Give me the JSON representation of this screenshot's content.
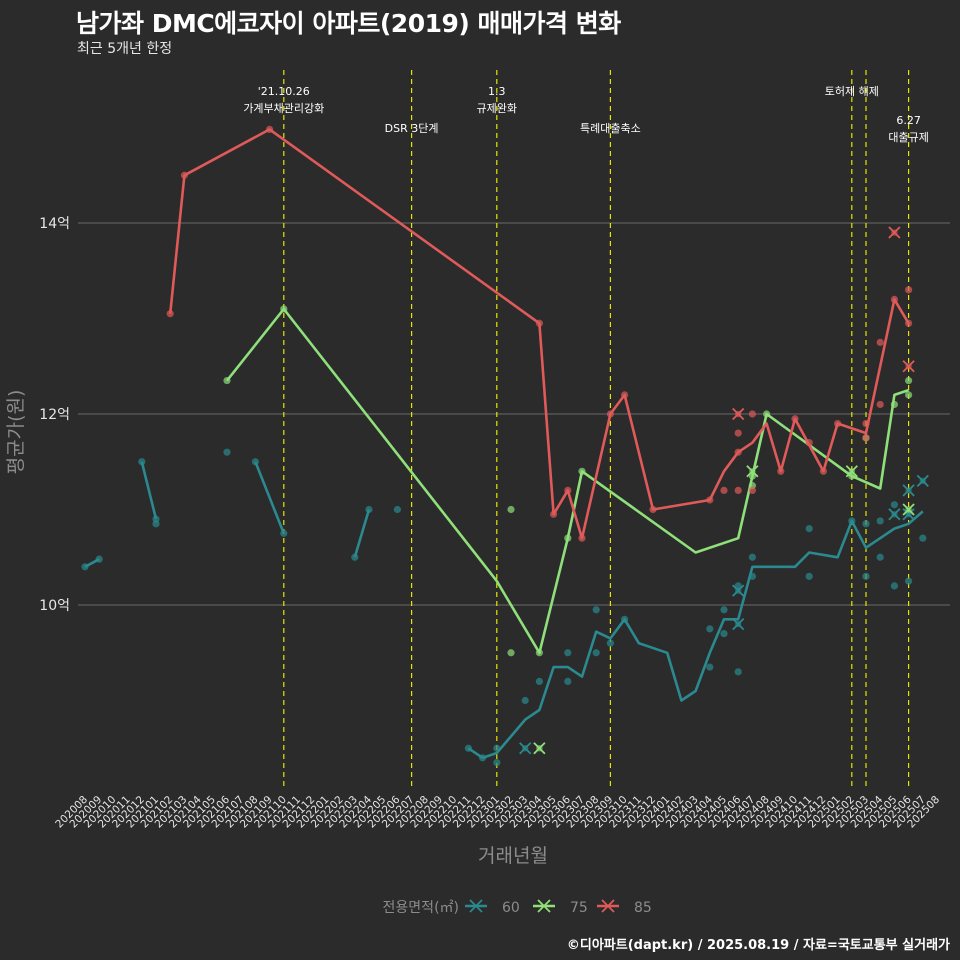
{
  "title": "남가좌 DMC에코자이 아파트(2019) 매매가격 변화",
  "subtitle": "최근 5개년 한정",
  "caption": "©디아파트(dapt.kr) / 2025.08.19 / 자료=국토교통부 실거래가",
  "chart_data": {
    "type": "line",
    "xlabel": "거래년월",
    "ylabel": "평균가(원)",
    "y_unit": "억",
    "ylim": [
      8.0,
      15.8
    ],
    "yticks": [
      10,
      12,
      14
    ],
    "ytick_labels": [
      "10억",
      "12억",
      "14억"
    ],
    "x_categories": [
      "202008",
      "202009",
      "202010",
      "202011",
      "202012",
      "202101",
      "202102",
      "202103",
      "202104",
      "202105",
      "202106",
      "202107",
      "202108",
      "202109",
      "202110",
      "202111",
      "202112",
      "202201",
      "202202",
      "202203",
      "202204",
      "202205",
      "202206",
      "202207",
      "202208",
      "202209",
      "202210",
      "202211",
      "202212",
      "202301",
      "202302",
      "202303",
      "202304",
      "202305",
      "202306",
      "202307",
      "202308",
      "202309",
      "202310",
      "202311",
      "202312",
      "202401",
      "202402",
      "202403",
      "202404",
      "202405",
      "202406",
      "202407",
      "202408",
      "202409",
      "202410",
      "202411",
      "202412",
      "202501",
      "202502",
      "202503",
      "202504",
      "202505",
      "202506",
      "202507",
      "202508"
    ],
    "grid": true,
    "legend": {
      "title": "전용면적(㎡)",
      "position": "bottom"
    },
    "annotations": [
      {
        "x": "202110",
        "lines": [
          "'21.10.26",
          "가계부채관리강화"
        ],
        "row": 1
      },
      {
        "x": "202207",
        "lines": [
          "DSR 3단계"
        ],
        "row": 2
      },
      {
        "x": "202301",
        "lines": [
          "1.3",
          "규제완화"
        ],
        "row": 1
      },
      {
        "x": "202309",
        "lines": [
          "특례대출축소"
        ],
        "row": 2
      },
      {
        "x": "202502",
        "lines": [
          "토허제 해제"
        ],
        "row": 1
      },
      {
        "x": "202503",
        "lines": [],
        "row": 0
      },
      {
        "x": "202506",
        "lines": [
          "6.27",
          "대출규제"
        ],
        "row": 3
      }
    ],
    "series": [
      {
        "name": "60",
        "color": "#2a8a8f",
        "segments": [
          [
            [
              "202008",
              10.4
            ],
            [
              "202009",
              10.48
            ]
          ],
          [
            [
              "202012",
              11.5
            ],
            [
              "202101",
              10.9
            ]
          ],
          [
            [
              "202108",
              11.5
            ],
            [
              "202110",
              10.75
            ]
          ],
          [
            [
              "202203",
              10.5
            ],
            [
              "202204",
              11.0
            ]
          ],
          [
            [
              "202211",
              8.5
            ],
            [
              "202212",
              8.4
            ],
            [
              "202301",
              8.45
            ],
            [
              "202303",
              8.8
            ],
            [
              "202304",
              8.9
            ],
            [
              "202305",
              9.35
            ],
            [
              "202306",
              9.35
            ],
            [
              "202307",
              9.25
            ],
            [
              "202308",
              9.72
            ],
            [
              "202309",
              9.65
            ],
            [
              "202310",
              9.85
            ],
            [
              "202311",
              9.6
            ],
            [
              "202401",
              9.5
            ],
            [
              "202402",
              9.0
            ],
            [
              "202403",
              9.1
            ],
            [
              "202404",
              9.5
            ],
            [
              "202405",
              9.85
            ],
            [
              "202406",
              9.85
            ],
            [
              "202407",
              10.4
            ],
            [
              "202408",
              10.4
            ],
            [
              "202410",
              10.4
            ],
            [
              "202411",
              10.55
            ],
            [
              "202501",
              10.5
            ],
            [
              "202502",
              10.88
            ],
            [
              "202503",
              10.6
            ],
            [
              "202504",
              10.7
            ],
            [
              "202505",
              10.8
            ],
            [
              "202506",
              10.85
            ],
            [
              "202507",
              10.98
            ]
          ]
        ],
        "points": [
          [
            "202008",
            10.4
          ],
          [
            "202009",
            10.48
          ],
          [
            "202012",
            11.5
          ],
          [
            "202101",
            10.9
          ],
          [
            "202101",
            10.85
          ],
          [
            "202106",
            11.6
          ],
          [
            "202108",
            11.5
          ],
          [
            "202110",
            10.75
          ],
          [
            "202203",
            10.5
          ],
          [
            "202204",
            11.0
          ],
          [
            "202206",
            11.0
          ],
          [
            "202211",
            8.5
          ],
          [
            "202212",
            8.4
          ],
          [
            "202301",
            8.35
          ],
          [
            "202301",
            8.5
          ],
          [
            "202303",
            9.0
          ],
          [
            "202304",
            9.2
          ],
          [
            "202306",
            9.5
          ],
          [
            "202306",
            9.2
          ],
          [
            "202308",
            9.95
          ],
          [
            "202308",
            9.5
          ],
          [
            "202309",
            9.6
          ],
          [
            "202310",
            9.85
          ],
          [
            "202404",
            9.35
          ],
          [
            "202404",
            9.75
          ],
          [
            "202405",
            9.95
          ],
          [
            "202405",
            9.7
          ],
          [
            "202406",
            10.2
          ],
          [
            "202406",
            9.3
          ],
          [
            "202407",
            10.5
          ],
          [
            "202407",
            10.3
          ],
          [
            "202411",
            10.8
          ],
          [
            "202411",
            10.3
          ],
          [
            "202502",
            10.88
          ],
          [
            "202503",
            10.85
          ],
          [
            "202503",
            10.3
          ],
          [
            "202504",
            10.5
          ],
          [
            "202504",
            10.88
          ],
          [
            "202505",
            11.05
          ],
          [
            "202505",
            10.2
          ],
          [
            "202506",
            10.25
          ],
          [
            "202507",
            10.7
          ]
        ],
        "crosses": [
          [
            "202303",
            8.5
          ],
          [
            "202406",
            10.15
          ],
          [
            "202406",
            9.8
          ],
          [
            "202505",
            10.95
          ],
          [
            "202506",
            11.2
          ],
          [
            "202506",
            10.95
          ],
          [
            "202507",
            11.3
          ]
        ]
      },
      {
        "name": "75",
        "color": "#8fe07a",
        "segments": [
          [
            [
              "202106",
              12.35
            ],
            [
              "202110",
              13.1
            ],
            [
              "202301",
              10.25
            ],
            [
              "202304",
              9.5
            ],
            [
              "202306",
              10.7
            ],
            [
              "202307",
              11.4
            ],
            [
              "202403",
              10.55
            ],
            [
              "202406",
              10.7
            ],
            [
              "202408",
              12.0
            ],
            [
              "202502",
              11.35
            ],
            [
              "202504",
              11.22
            ],
            [
              "202505",
              12.2
            ],
            [
              "202506",
              12.25
            ]
          ]
        ],
        "points": [
          [
            "202106",
            12.35
          ],
          [
            "202110",
            13.1
          ],
          [
            "202302",
            11.0
          ],
          [
            "202302",
            9.5
          ],
          [
            "202304",
            9.5
          ],
          [
            "202306",
            10.7
          ],
          [
            "202307",
            11.4
          ],
          [
            "202407",
            11.35
          ],
          [
            "202407",
            11.25
          ],
          [
            "202408",
            12.0
          ],
          [
            "202502",
            11.35
          ],
          [
            "202503",
            11.75
          ],
          [
            "202505",
            12.1
          ],
          [
            "202506",
            12.35
          ],
          [
            "202506",
            12.2
          ]
        ],
        "crosses": [
          [
            "202304",
            8.5
          ],
          [
            "202407",
            11.4
          ],
          [
            "202502",
            11.4
          ],
          [
            "202506",
            11.0
          ]
        ]
      },
      {
        "name": "85",
        "color": "#e05a5a",
        "segments": [
          [
            [
              "202102",
              13.05
            ],
            [
              "202103",
              14.5
            ],
            [
              "202109",
              14.98
            ],
            [
              "202304",
              12.95
            ],
            [
              "202305",
              10.95
            ],
            [
              "202306",
              11.2
            ],
            [
              "202307",
              10.7
            ],
            [
              "202309",
              12.0
            ],
            [
              "202310",
              12.2
            ],
            [
              "202312",
              11.0
            ],
            [
              "202404",
              11.1
            ],
            [
              "202405",
              11.4
            ],
            [
              "202406",
              11.6
            ],
            [
              "202407",
              11.7
            ],
            [
              "202408",
              11.9
            ],
            [
              "202409",
              11.4
            ],
            [
              "202410",
              11.95
            ],
            [
              "202412",
              11.4
            ],
            [
              "202501",
              11.9
            ],
            [
              "202503",
              11.8
            ],
            [
              "202505",
              13.2
            ],
            [
              "202506",
              12.95
            ]
          ]
        ],
        "points": [
          [
            "202102",
            13.05
          ],
          [
            "202103",
            14.5
          ],
          [
            "202109",
            14.98
          ],
          [
            "202304",
            12.95
          ],
          [
            "202305",
            10.95
          ],
          [
            "202306",
            11.2
          ],
          [
            "202307",
            10.7
          ],
          [
            "202309",
            12.0
          ],
          [
            "202310",
            12.2
          ],
          [
            "202312",
            11.0
          ],
          [
            "202404",
            11.1
          ],
          [
            "202405",
            11.2
          ],
          [
            "202406",
            11.8
          ],
          [
            "202406",
            11.6
          ],
          [
            "202406",
            11.2
          ],
          [
            "202407",
            12.0
          ],
          [
            "202407",
            11.2
          ],
          [
            "202409",
            11.4
          ],
          [
            "202410",
            11.95
          ],
          [
            "202411",
            11.7
          ],
          [
            "202412",
            11.4
          ],
          [
            "202501",
            11.9
          ],
          [
            "202503",
            11.75
          ],
          [
            "202503",
            11.9
          ],
          [
            "202504",
            12.75
          ],
          [
            "202504",
            12.1
          ],
          [
            "202505",
            13.2
          ],
          [
            "202506",
            13.3
          ],
          [
            "202506",
            12.95
          ]
        ],
        "crosses": [
          [
            "202406",
            12.0
          ],
          [
            "202505",
            13.9
          ],
          [
            "202506",
            12.5
          ]
        ]
      }
    ]
  }
}
